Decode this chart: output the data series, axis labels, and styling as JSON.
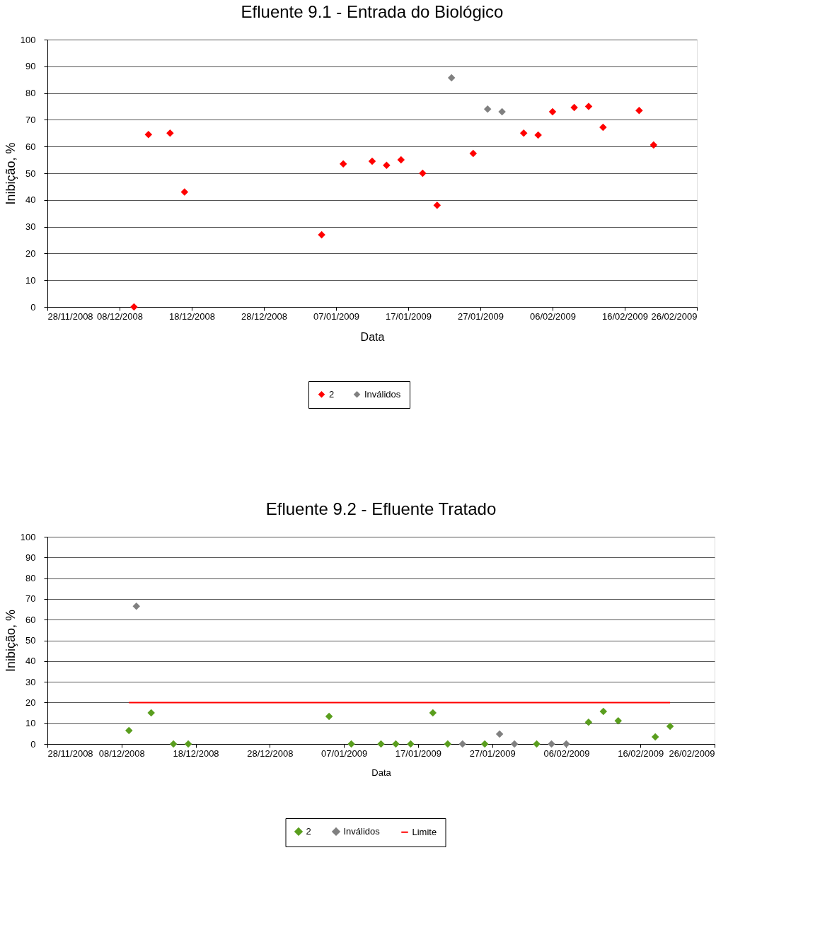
{
  "chart_data": [
    {
      "type": "scatter",
      "title": "Efluente 9.1 - Entrada do Biológico",
      "xlabel": "Data",
      "ylabel": "Inibição, %",
      "xlim": [
        "2008-11-28",
        "2009-02-26"
      ],
      "xticks": [
        {
          "value": "2008-11-28",
          "label": "28/11/2008"
        },
        {
          "value": "2008-12-08",
          "label": "08/12/2008"
        },
        {
          "value": "2008-12-18",
          "label": "18/12/2008"
        },
        {
          "value": "2008-12-28",
          "label": "28/12/2008"
        },
        {
          "value": "2009-01-07",
          "label": "07/01/2009"
        },
        {
          "value": "2009-01-17",
          "label": "17/01/2009"
        },
        {
          "value": "2009-01-27",
          "label": "27/01/2009"
        },
        {
          "value": "2009-02-06",
          "label": "06/02/2009"
        },
        {
          "value": "2009-02-16",
          "label": "16/02/2009"
        },
        {
          "value": "2009-02-26",
          "label": "26/02/2009"
        }
      ],
      "ylim": [
        0,
        100
      ],
      "yticks": [
        0,
        10,
        20,
        30,
        40,
        50,
        60,
        70,
        80,
        90,
        100
      ],
      "grid": "y",
      "legend": "bottom",
      "marker": "diamond",
      "series": [
        {
          "name": "2",
          "color": "#ff0000",
          "x": [
            "2008-12-10",
            "2008-12-12",
            "2008-12-15",
            "2008-12-17",
            "2009-01-05",
            "2009-01-08",
            "2009-01-12",
            "2009-01-14",
            "2009-01-16",
            "2009-01-19",
            "2009-01-21",
            "2009-01-26",
            "2009-02-02",
            "2009-02-04",
            "2009-02-06",
            "2009-02-09",
            "2009-02-11",
            "2009-02-13",
            "2009-02-18",
            "2009-02-20"
          ],
          "values": [
            0,
            64.5,
            65,
            43,
            27,
            53.5,
            54.5,
            53,
            55,
            50,
            38,
            57.4,
            65,
            64.3,
            73,
            74.6,
            75,
            67.2,
            73.5,
            60.6
          ]
        },
        {
          "name": "Inválidos",
          "color": "#808080",
          "x": [
            "2009-01-23",
            "2009-01-28",
            "2009-01-30"
          ],
          "values": [
            85.7,
            74,
            73
          ]
        }
      ]
    },
    {
      "type": "scatter",
      "title": "Efluente 9.2 - Efluente Tratado",
      "xlabel": "Data",
      "ylabel": "Inibição, %",
      "xlim": [
        "2008-11-28",
        "2009-02-26"
      ],
      "xticks": [
        {
          "value": "2008-11-28",
          "label": "28/11/2008"
        },
        {
          "value": "2008-12-08",
          "label": "08/12/2008"
        },
        {
          "value": "2008-12-18",
          "label": "18/12/2008"
        },
        {
          "value": "2008-12-28",
          "label": "28/12/2008"
        },
        {
          "value": "2009-01-07",
          "label": "07/01/2009"
        },
        {
          "value": "2009-01-17",
          "label": "17/01/2009"
        },
        {
          "value": "2009-01-27",
          "label": "27/01/2009"
        },
        {
          "value": "2009-02-06",
          "label": "06/02/2009"
        },
        {
          "value": "2009-02-16",
          "label": "16/02/2009"
        },
        {
          "value": "2009-02-26",
          "label": "26/02/2009"
        }
      ],
      "ylim": [
        0,
        100
      ],
      "yticks": [
        0,
        10,
        20,
        30,
        40,
        50,
        60,
        70,
        80,
        90,
        100
      ],
      "grid": "y",
      "legend": "bottom",
      "marker": "diamond",
      "series": [
        {
          "name": "2",
          "color": "#5a9e1e",
          "x": [
            "2008-12-09",
            "2008-12-12",
            "2008-12-15",
            "2008-12-17",
            "2009-01-05",
            "2009-01-08",
            "2009-01-12",
            "2009-01-14",
            "2009-01-16",
            "2009-01-19",
            "2009-01-21",
            "2009-01-26",
            "2009-02-02",
            "2009-02-09",
            "2009-02-11",
            "2009-02-13",
            "2009-02-18",
            "2009-02-20"
          ],
          "values": [
            6.5,
            15,
            0,
            0,
            13.3,
            0,
            0,
            0,
            0,
            15,
            0,
            0,
            0,
            10.5,
            15.7,
            11.2,
            3.4,
            8.5
          ]
        },
        {
          "name": "Inválidos",
          "color": "#808080",
          "x": [
            "2008-12-10",
            "2009-01-23",
            "2009-01-28",
            "2009-01-30",
            "2009-02-04",
            "2009-02-06"
          ],
          "values": [
            66.5,
            0,
            4.8,
            0,
            0,
            0
          ]
        },
        {
          "name": "Limite",
          "type": "line",
          "marker": "none",
          "color": "#ff0000",
          "x": [
            "2008-12-09",
            "2009-02-20"
          ],
          "values": [
            20,
            20
          ]
        }
      ]
    }
  ]
}
